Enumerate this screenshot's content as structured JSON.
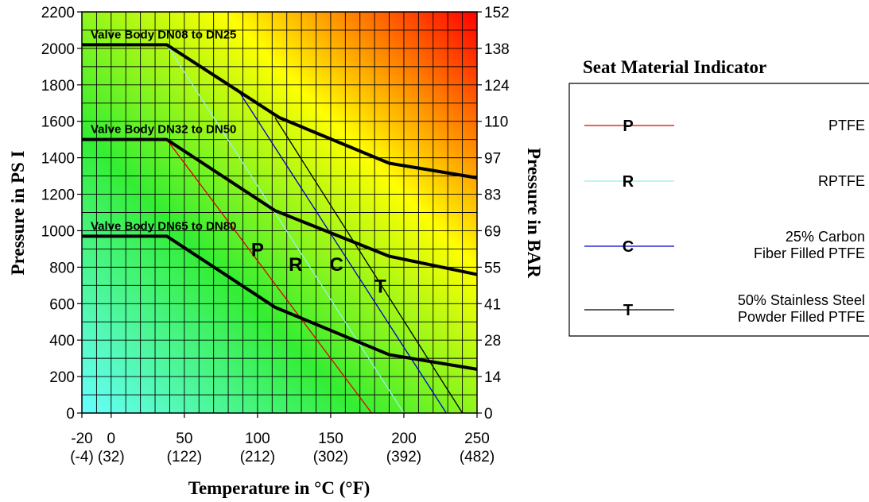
{
  "chart_data": {
    "type": "line",
    "title": "",
    "xlabel": "Temperature in °C (°F)",
    "ylabel_left": "Pressure in PS I",
    "ylabel_right": "Pressure in BAR",
    "xlim": [
      -20,
      250
    ],
    "ylim": [
      0,
      2200
    ],
    "x_ticks": [
      {
        "value": -20,
        "label": "-20",
        "sublabel": "(-4)"
      },
      {
        "value": 0,
        "label": "0",
        "sublabel": "(32)"
      },
      {
        "value": 50,
        "label": "50",
        "sublabel": "(122)"
      },
      {
        "value": 100,
        "label": "100",
        "sublabel": "(212)"
      },
      {
        "value": 150,
        "label": "150",
        "sublabel": "(302)"
      },
      {
        "value": 200,
        "label": "200",
        "sublabel": "(392)"
      },
      {
        "value": 250,
        "label": "250",
        "sublabel": "(482)"
      }
    ],
    "y_ticks_left": [
      "0",
      "200",
      "400",
      "600",
      "800",
      "1000",
      "1200",
      "1400",
      "1600",
      "1800",
      "2000",
      "2200"
    ],
    "y_ticks_right": [
      {
        "psi": 0,
        "label": "0"
      },
      {
        "psi": 200,
        "label": "14"
      },
      {
        "psi": 400,
        "label": "28"
      },
      {
        "psi": 600,
        "label": "41"
      },
      {
        "psi": 800,
        "label": "55"
      },
      {
        "psi": 1000,
        "label": "69"
      },
      {
        "psi": 1200,
        "label": "83"
      },
      {
        "psi": 1400,
        "label": "97"
      },
      {
        "psi": 1600,
        "label": "110"
      },
      {
        "psi": 1800,
        "label": "124"
      },
      {
        "psi": 2000,
        "label": "138"
      },
      {
        "psi": 2200,
        "label": "152"
      }
    ],
    "grid": true,
    "body_series": [
      {
        "name": "Valve Body DN08 to DN25",
        "x": [
          -20,
          38,
          115,
          190,
          250
        ],
        "y": [
          2020,
          2020,
          1620,
          1370,
          1290
        ]
      },
      {
        "name": "Valve Body DN32 to DN50",
        "x": [
          -20,
          38,
          112,
          190,
          250
        ],
        "y": [
          1500,
          1500,
          1110,
          860,
          760
        ]
      },
      {
        "name": "Valve Body DN65 to DN80",
        "x": [
          -20,
          38,
          112,
          190,
          250
        ],
        "y": [
          970,
          970,
          580,
          320,
          240
        ]
      }
    ],
    "seat_series": [
      {
        "name": "P",
        "color": "#dd0000",
        "x": [
          38,
          178
        ],
        "y": [
          1500,
          0
        ]
      },
      {
        "name": "R",
        "color": "#99eeee",
        "x": [
          38,
          200
        ],
        "y": [
          2020,
          0
        ]
      },
      {
        "name": "C",
        "color": "#0000cc",
        "x": [
          86,
          229
        ],
        "y": [
          1780,
          0
        ]
      },
      {
        "name": "T",
        "color": "#000000",
        "x": [
          112,
          240
        ],
        "y": [
          1620,
          0
        ]
      }
    ],
    "seat_labels": [
      {
        "text": "P",
        "x": 100,
        "y": 860
      },
      {
        "text": "R",
        "x": 126,
        "y": 780
      },
      {
        "text": "C",
        "x": 154,
        "y": 780
      },
      {
        "text": "T",
        "x": 184,
        "y": 660
      }
    ]
  },
  "legend": {
    "title": "Seat Material Indicator",
    "items": [
      {
        "letter": "P",
        "color": "#dd0000",
        "desc": [
          "PTFE"
        ]
      },
      {
        "letter": "R",
        "color": "#99eeee",
        "desc": [
          "RPTFE"
        ]
      },
      {
        "letter": "C",
        "color": "#0000cc",
        "desc": [
          "25% Carbon",
          "Fiber Filled PTFE"
        ]
      },
      {
        "letter": "T",
        "color": "#000000",
        "desc": [
          "50% Stainless Steel",
          "Powder Filled PTFE"
        ]
      }
    ]
  },
  "colors": {
    "gradient": [
      "#66ffff",
      "#33ee33",
      "#ffff00",
      "#ff0000"
    ]
  }
}
